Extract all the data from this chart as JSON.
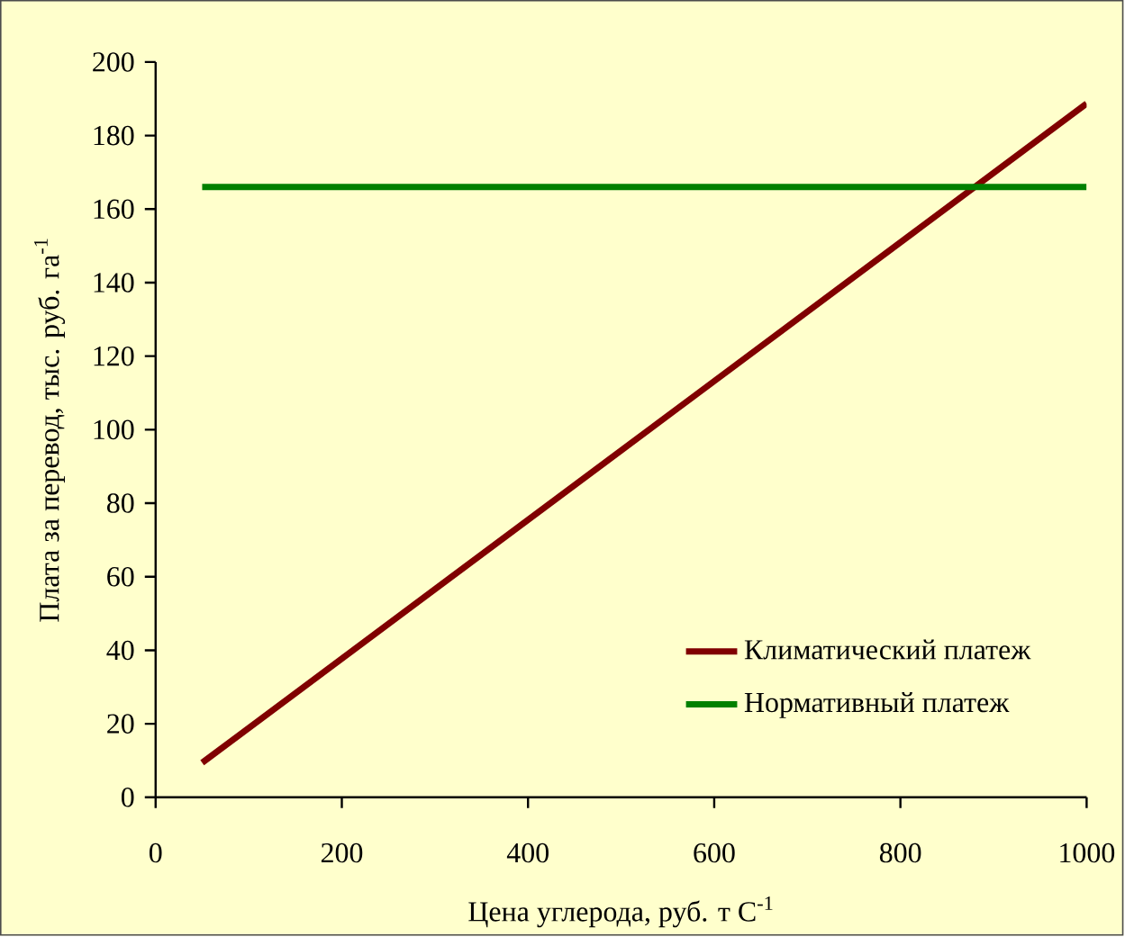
{
  "chart_data": {
    "type": "line",
    "xlabel": "Цена углерода, руб. т С$^{-1}$",
    "ylabel": "Плата за перевод, тыс. руб. га$^{-1}$",
    "xlim": [
      0,
      1000
    ],
    "ylim": [
      0,
      200
    ],
    "xticks": [
      0,
      200,
      400,
      600,
      800,
      1000
    ],
    "yticks": [
      0,
      20,
      40,
      60,
      80,
      100,
      120,
      140,
      160,
      180,
      200
    ],
    "x": [
      50,
      1000
    ],
    "grid": false,
    "legend": "bottom right",
    "marker": "none",
    "line_style": "solid",
    "series": [
      {
        "name": "Климатический платеж",
        "color": "#800000",
        "values": [
          9.4,
          188.7
        ]
      },
      {
        "name": "Нормативный платеж",
        "color": "#008000",
        "values": [
          166,
          166
        ]
      }
    ]
  }
}
